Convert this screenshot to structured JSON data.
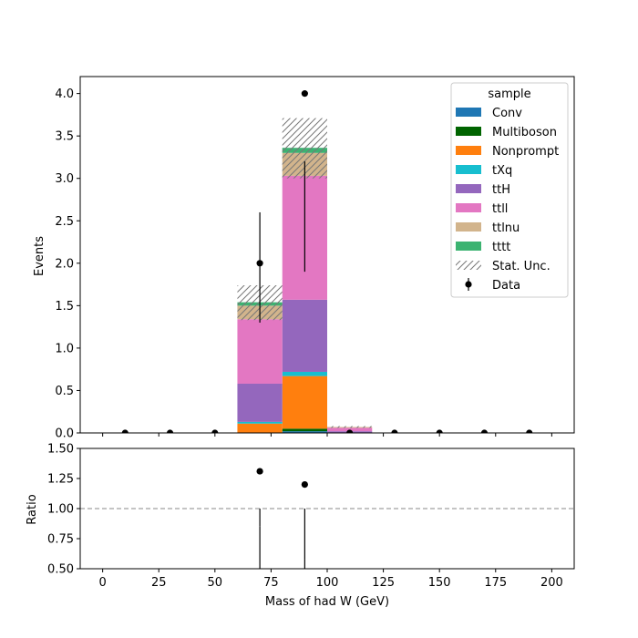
{
  "chart_data": {
    "type": "bar",
    "stacked": true,
    "xlabel": "Mass of had W (GeV)",
    "ylabel": "Events",
    "ratio_ylabel": "Ratio",
    "xlim": [
      -10,
      210
    ],
    "ylim": [
      0,
      4.2
    ],
    "ratio_ylim": [
      0.5,
      1.5
    ],
    "xticks": [
      0,
      25,
      50,
      75,
      100,
      125,
      150,
      175,
      200
    ],
    "yticks": [
      0.0,
      0.5,
      1.0,
      1.5,
      2.0,
      2.5,
      3.0,
      3.5,
      4.0
    ],
    "ratio_yticks": [
      0.5,
      0.75,
      1.0,
      1.25,
      1.5
    ],
    "bin_edges": [
      0,
      20,
      40,
      60,
      80,
      100,
      120,
      140,
      160,
      180,
      200
    ],
    "series": [
      {
        "name": "Conv",
        "color": "#1f77b4",
        "values": [
          0,
          0,
          0,
          0,
          0.02,
          0,
          0,
          0,
          0,
          0
        ]
      },
      {
        "name": "Multiboson",
        "color": "#006400",
        "values": [
          0,
          0,
          0,
          0,
          0.03,
          0,
          0,
          0,
          0,
          0
        ]
      },
      {
        "name": "Nonprompt",
        "color": "#ff7f0e",
        "values": [
          0,
          0,
          0,
          0.11,
          0.62,
          0,
          0,
          0,
          0,
          0
        ]
      },
      {
        "name": "tXq",
        "color": "#17becf",
        "values": [
          0,
          0,
          0,
          0.02,
          0.05,
          0,
          0,
          0,
          0,
          0
        ]
      },
      {
        "name": "ttH",
        "color": "#9467bd",
        "values": [
          0,
          0,
          0,
          0.45,
          0.85,
          0.02,
          0,
          0,
          0,
          0
        ]
      },
      {
        "name": "ttll",
        "color": "#e377c2",
        "values": [
          0,
          0,
          0,
          0.76,
          1.46,
          0.04,
          0,
          0,
          0,
          0
        ]
      },
      {
        "name": "ttlnu",
        "color": "#d2b48c",
        "values": [
          0,
          0,
          0,
          0.16,
          0.27,
          0.01,
          0,
          0,
          0,
          0
        ]
      },
      {
        "name": "tttt",
        "color": "#3cb371",
        "values": [
          0,
          0,
          0,
          0.04,
          0.06,
          0,
          0,
          0,
          0,
          0
        ]
      }
    ],
    "stat_unc": {
      "name": "Stat. Unc.",
      "up": [
        0,
        0,
        0,
        1.74,
        3.71,
        0.08,
        0,
        0,
        0,
        0
      ],
      "down": [
        0,
        0,
        0,
        1.33,
        3.0,
        0.06,
        0,
        0,
        0,
        0
      ]
    },
    "data": {
      "name": "Data",
      "x": [
        10,
        30,
        50,
        70,
        90,
        110,
        130,
        150,
        170,
        190
      ],
      "y": [
        0,
        0,
        0,
        2,
        4,
        0,
        0,
        0,
        0,
        0
      ],
      "err_low": [
        0,
        0,
        0,
        1.3,
        1.9,
        0,
        0,
        0,
        0,
        0
      ],
      "err_high": [
        0,
        0,
        0,
        2.6,
        3.2,
        0,
        0,
        0,
        0,
        0
      ]
    },
    "ratio": {
      "x": [
        70,
        90
      ],
      "y": [
        1.31,
        1.2
      ],
      "err_low": [
        0.85,
        0.58
      ],
      "err_high": [
        1.0,
        1.0
      ]
    },
    "ratio_reference": 1.0,
    "legend": {
      "title": "sample",
      "placement": "top-right"
    }
  }
}
